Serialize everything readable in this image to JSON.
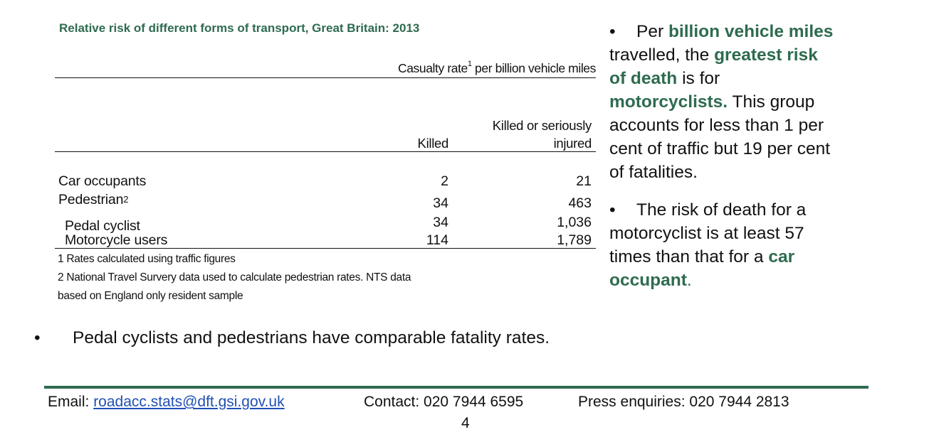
{
  "table": {
    "title": "Relative risk of different forms of transport, Great Britain: 2013",
    "casualty_header_pre": "Casualty rate",
    "casualty_header_sup": "1",
    "casualty_header_post": " per billion vehicle miles",
    "col_killed": "Killed",
    "col_ksi_line1": "Killed or seriously",
    "col_ksi_line2": "injured",
    "rows": [
      {
        "label": "Car occupants",
        "sup": "",
        "killed": "2",
        "ksi": "21"
      },
      {
        "label": "Pedestrian",
        "sup": "2",
        "killed": "34",
        "ksi": "463"
      },
      {
        "label": "Pedal cyclist",
        "sup": "",
        "killed": "34",
        "ksi": "1,036"
      },
      {
        "label": "Motorcycle users",
        "sup": "",
        "killed": "114",
        "ksi": "1,789"
      }
    ],
    "footnotes": [
      "1 Rates calculated using traffic figures",
      "2 National Travel Survery data used to calculate pedestrian rates. NTS data",
      "based on England only resident sample"
    ]
  },
  "bullets": {
    "dot": "•",
    "b1_a": "Per ",
    "b1_b": "billion vehicle miles",
    "b1_c": " travelled, the ",
    "b1_d": "greatest risk of death",
    "b1_e": " is for ",
    "b1_f": "motorcyclists.",
    "b1_g": " This group accounts for less than 1 per cent of traffic but 19 per cent of fatalities.",
    "b2_a": "The risk of death for a motorcyclist is at least 57 times than that for a ",
    "b2_b": "car occupant",
    "b2_c": ".",
    "bottom": "Pedal cyclists and pedestrians have comparable fatality rates."
  },
  "footer": {
    "email_label": "Email: ",
    "email": "roadacc.stats@dft.gsi.gov.uk",
    "contact": "Contact: 020 7944 6595",
    "press": "Press enquiries: 020 7944 2813",
    "page_number": "4"
  },
  "colors": {
    "accent_green": "#2e6b4f",
    "link_blue": "#1f4fb4"
  }
}
